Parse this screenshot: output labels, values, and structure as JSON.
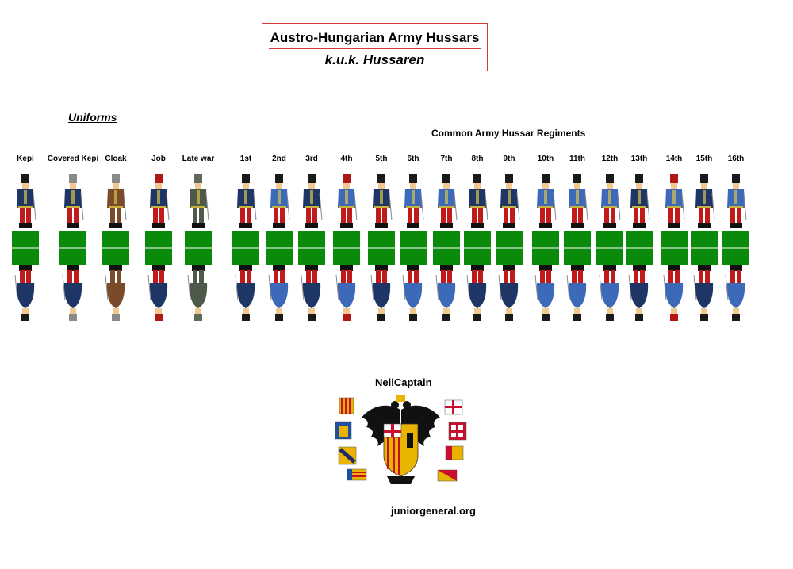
{
  "title": {
    "main": "Austro-Hungarian Army Hussars",
    "sub": "k.u.k. Hussaren"
  },
  "uniforms_heading": "Uniforms",
  "regiments_heading": "Common Army Hussar Regiments",
  "columns": [
    {
      "label": "Kepi",
      "jacket": "#1e3666",
      "trousers": "#c01a1a",
      "hat": "kepi"
    },
    {
      "label": "Covered Kepi",
      "jacket": "#1e3666",
      "trousers": "#c01a1a",
      "hat": "covered"
    },
    {
      "label": "Cloak",
      "jacket": "#7a4b2b",
      "trousers": "#7a4b2b",
      "hat": "covered"
    },
    {
      "label": "Job",
      "jacket": "#1e3666",
      "trousers": "#c01a1a",
      "hat": "red"
    },
    {
      "label": "Late war",
      "jacket": "#4d5a49",
      "trousers": "#4d5a49",
      "hat": "grey"
    },
    {
      "label": "1st",
      "jacket": "#1e3666",
      "trousers": "#c01a1a",
      "hat": "kepi"
    },
    {
      "label": "2nd",
      "jacket": "#3c6ab8",
      "trousers": "#c01a1a",
      "hat": "kepi"
    },
    {
      "label": "3rd",
      "jacket": "#1e3666",
      "trousers": "#c01a1a",
      "hat": "kepi"
    },
    {
      "label": "4th",
      "jacket": "#3c6ab8",
      "trousers": "#c01a1a",
      "hat": "red"
    },
    {
      "label": "5th",
      "jacket": "#1e3666",
      "trousers": "#c01a1a",
      "hat": "kepi"
    },
    {
      "label": "6th",
      "jacket": "#3c6ab8",
      "trousers": "#c01a1a",
      "hat": "kepi"
    },
    {
      "label": "7th",
      "jacket": "#3c6ab8",
      "trousers": "#c01a1a",
      "hat": "kepi"
    },
    {
      "label": "8th",
      "jacket": "#1e3666",
      "trousers": "#c01a1a",
      "hat": "kepi"
    },
    {
      "label": "9th",
      "jacket": "#1e3666",
      "trousers": "#c01a1a",
      "hat": "kepi"
    },
    {
      "label": "10th",
      "jacket": "#3c6ab8",
      "trousers": "#c01a1a",
      "hat": "kepi"
    },
    {
      "label": "11th",
      "jacket": "#3c6ab8",
      "trousers": "#c01a1a",
      "hat": "kepi"
    },
    {
      "label": "12th",
      "jacket": "#3c6ab8",
      "trousers": "#c01a1a",
      "hat": "kepi"
    },
    {
      "label": "13th",
      "jacket": "#1e3666",
      "trousers": "#c01a1a",
      "hat": "kepi"
    },
    {
      "label": "14th",
      "jacket": "#3c6ab8",
      "trousers": "#c01a1a",
      "hat": "red"
    },
    {
      "label": "15th",
      "jacket": "#1e3666",
      "trousers": "#c01a1a",
      "hat": "kepi"
    },
    {
      "label": "16th",
      "jacket": "#3c6ab8",
      "trousers": "#c01a1a",
      "hat": "kepi"
    }
  ],
  "base_color": "#0a8a0a",
  "author": "NeilCaptain",
  "website": "juniorgeneral.org"
}
